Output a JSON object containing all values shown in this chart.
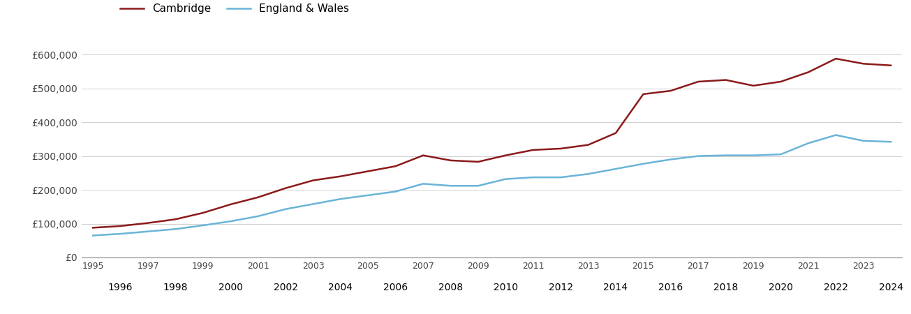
{
  "cambridge": {
    "years": [
      1995,
      1996,
      1997,
      1998,
      1999,
      2000,
      2001,
      2002,
      2003,
      2004,
      2005,
      2006,
      2007,
      2008,
      2009,
      2010,
      2011,
      2012,
      2013,
      2014,
      2015,
      2016,
      2017,
      2018,
      2019,
      2020,
      2021,
      2022,
      2023,
      2024
    ],
    "values": [
      88000,
      93000,
      102000,
      113000,
      132000,
      157000,
      178000,
      205000,
      228000,
      240000,
      255000,
      270000,
      302000,
      287000,
      283000,
      302000,
      318000,
      322000,
      333000,
      368000,
      483000,
      493000,
      520000,
      525000,
      508000,
      520000,
      548000,
      588000,
      573000,
      568000
    ]
  },
  "england_wales": {
    "years": [
      1995,
      1996,
      1997,
      1998,
      1999,
      2000,
      2001,
      2002,
      2003,
      2004,
      2005,
      2006,
      2007,
      2008,
      2009,
      2010,
      2011,
      2012,
      2013,
      2014,
      2015,
      2016,
      2017,
      2018,
      2019,
      2020,
      2021,
      2022,
      2023,
      2024
    ],
    "values": [
      65000,
      70000,
      77000,
      84000,
      95000,
      107000,
      122000,
      143000,
      158000,
      173000,
      184000,
      195000,
      218000,
      212000,
      212000,
      232000,
      237000,
      237000,
      247000,
      262000,
      277000,
      290000,
      300000,
      302000,
      302000,
      305000,
      338000,
      362000,
      345000,
      342000
    ]
  },
  "cambridge_color": "#8b1a1a",
  "england_wales_color": "#6ab4d8",
  "background_color": "#ffffff",
  "grid_color": "#d0d0d0",
  "ylim": [
    0,
    650000
  ],
  "yticks": [
    0,
    100000,
    200000,
    300000,
    400000,
    500000,
    600000
  ],
  "legend_cambridge": "Cambridge",
  "legend_ew": "England & Wales",
  "line_width": 1.8,
  "odd_years": [
    1995,
    1997,
    1999,
    2001,
    2003,
    2005,
    2007,
    2009,
    2011,
    2013,
    2015,
    2017,
    2019,
    2021,
    2023
  ],
  "even_years": [
    1996,
    1998,
    2000,
    2002,
    2004,
    2006,
    2008,
    2010,
    2012,
    2014,
    2016,
    2018,
    2020,
    2022,
    2024
  ]
}
